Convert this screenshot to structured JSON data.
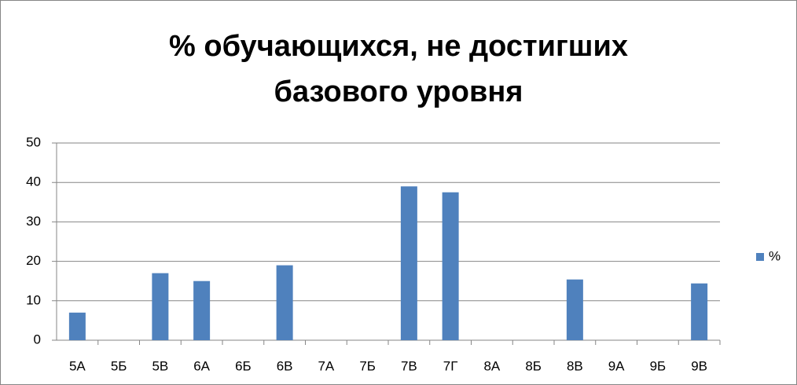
{
  "chart_data": {
    "type": "bar",
    "title": "% обучающихся, не достигших базового уровня",
    "categories": [
      "5А",
      "5Б",
      "5В",
      "6А",
      "6Б",
      "6В",
      "7А",
      "7Б",
      "7В",
      "7Г",
      "8А",
      "8Б",
      "8В",
      "9А",
      "9Б",
      "9В"
    ],
    "series": [
      {
        "name": "%",
        "color": "#4f81bd",
        "values": [
          7,
          0,
          17,
          15,
          0,
          19,
          0,
          0,
          39,
          37.5,
          0,
          0,
          15.4,
          0,
          0,
          14.4
        ]
      }
    ],
    "ylim": [
      0,
      50
    ],
    "yticks": [
      0,
      10,
      20,
      30,
      40,
      50
    ],
    "grid": true,
    "legend": "right"
  }
}
